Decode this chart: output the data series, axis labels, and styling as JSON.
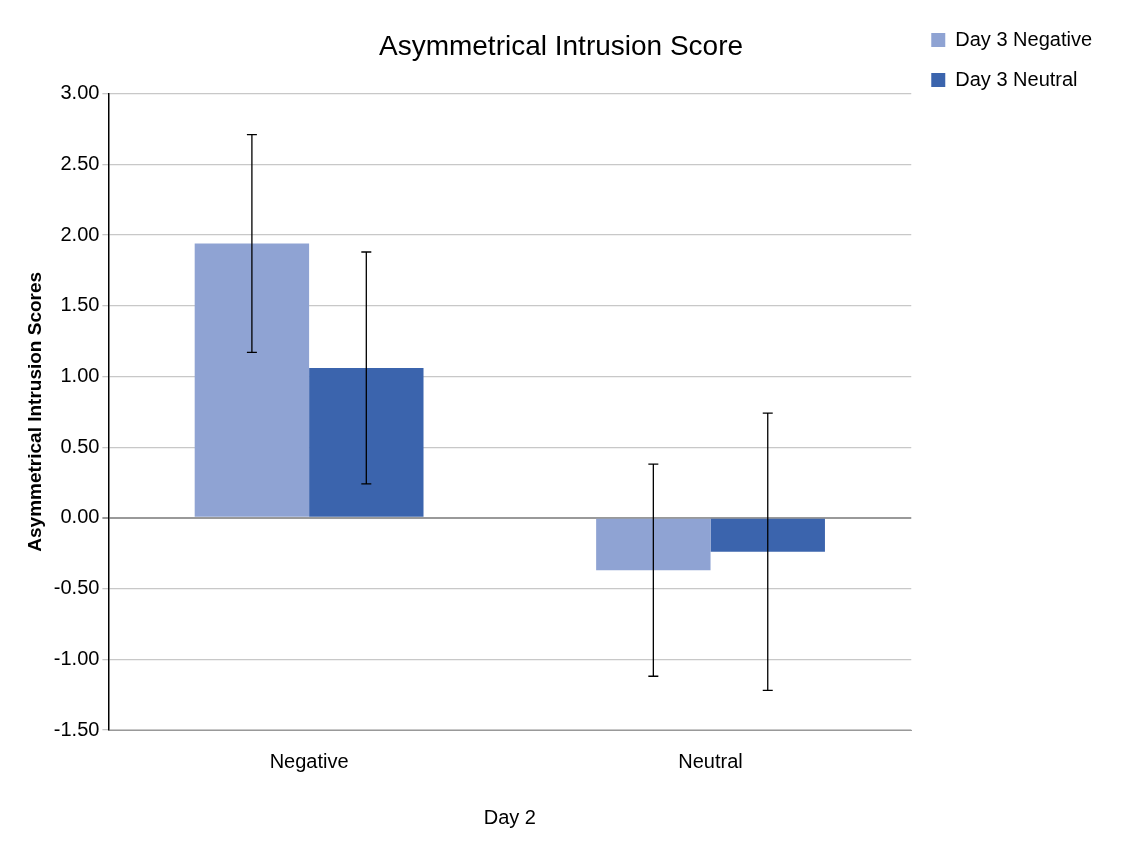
{
  "chart_data": {
    "type": "bar",
    "title": "Asymmetrical Intrusion Score",
    "ylabel": "Asymmetrical Intrusion Scores",
    "xlabel": "Day 2",
    "categories": [
      "Negative",
      "Neutral"
    ],
    "series": [
      {
        "name": "Day 3 Negative",
        "color": "#8fa3d3",
        "values": [
          1.94,
          -0.37
        ],
        "errors": [
          0.77,
          0.75
        ]
      },
      {
        "name": "Day 3 Neutral",
        "color": "#3b64ad",
        "values": [
          1.06,
          -0.24
        ],
        "errors": [
          0.82,
          0.98
        ]
      }
    ],
    "ylim": [
      -1.5,
      3
    ],
    "yticks": [
      {
        "value": -1.5,
        "label": "-1.50"
      },
      {
        "value": -1,
        "label": "-1.00"
      },
      {
        "value": -0.5,
        "label": "-0.50"
      },
      {
        "value": 0,
        "label": "0.00"
      },
      {
        "value": 0.5,
        "label": "0.50"
      },
      {
        "value": 1,
        "label": "1.00"
      },
      {
        "value": 1.5,
        "label": "1.50"
      },
      {
        "value": 2,
        "label": "2.00"
      },
      {
        "value": 2.5,
        "label": "2.50"
      },
      {
        "value": 3,
        "label": "3.00"
      }
    ],
    "grid": "y",
    "legend": "right"
  }
}
